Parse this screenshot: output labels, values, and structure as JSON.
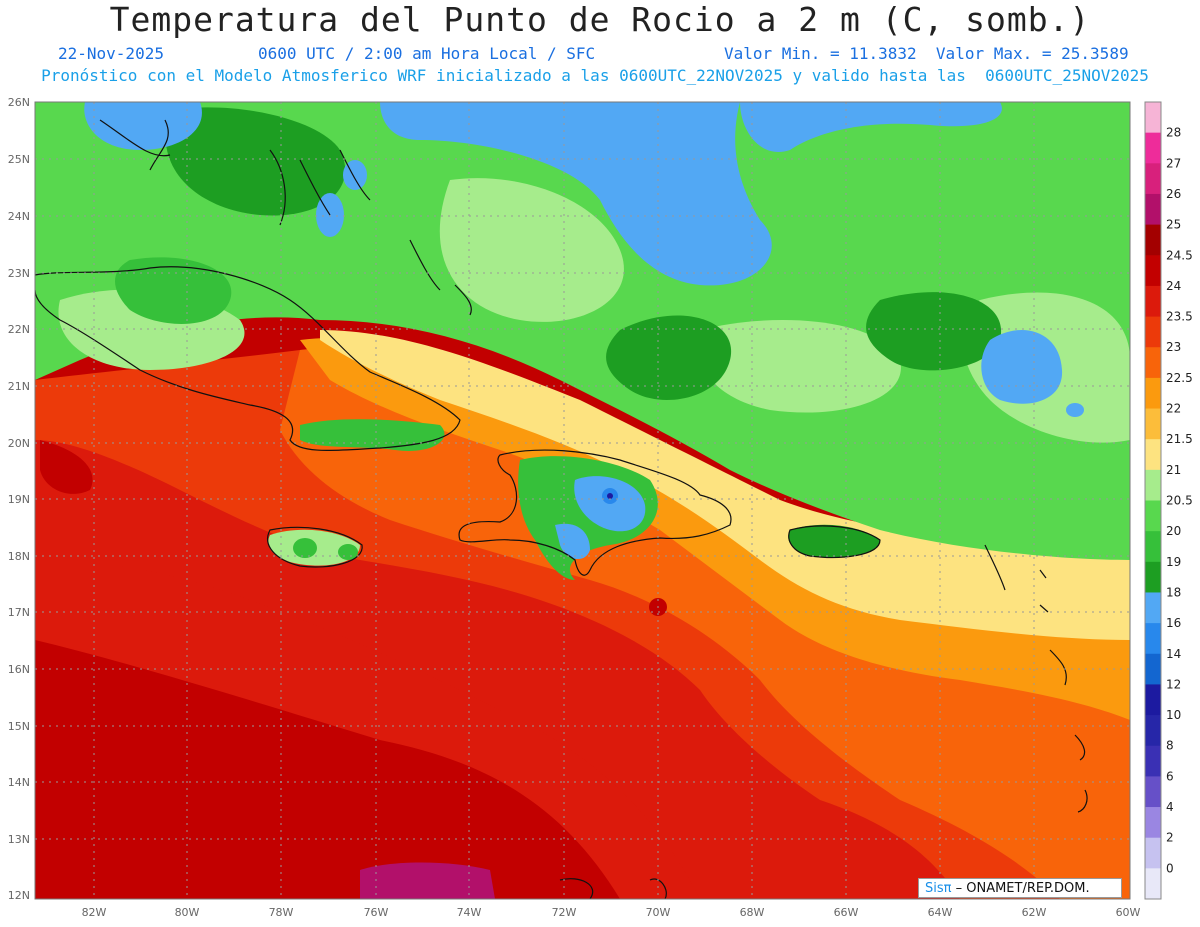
{
  "title": "Temperatura del Punto de Rocio a 2 m (C, somb.)",
  "date": "22-Nov-2025",
  "time": "0600 UTC / 2:00 am Hora Local / SFC",
  "minmax": "Valor Min. = 11.3832  Valor Max. = 25.3589",
  "model_line": "Pronóstico con el Modelo Atmosferico WRF inicializado a las 0600UTC_22NOV2025 y valido hasta las  0600UTC_25NOV2025",
  "credit": {
    "brand": "Sisπ",
    "text": "– ONAMET/REP.DOM."
  },
  "axes": {
    "lon_labels": [
      "82W",
      "80W",
      "78W",
      "76W",
      "74W",
      "72W",
      "70W",
      "68W",
      "66W",
      "64W",
      "62W",
      "60W"
    ],
    "lat_labels": [
      "26N",
      "25N",
      "24N",
      "23N",
      "22N",
      "21N",
      "20N",
      "19N",
      "18N",
      "17N",
      "16N",
      "15N",
      "14N",
      "13N",
      "12N"
    ]
  },
  "colorbar": {
    "labels": [
      "28",
      "27",
      "26",
      "25",
      "24.5",
      "24",
      "23.5",
      "23",
      "22.5",
      "22",
      "21.5",
      "21",
      "20.5",
      "20",
      "19",
      "18",
      "16",
      "14",
      "12",
      "10",
      "8",
      "6",
      "4",
      "2",
      "0"
    ],
    "colors": [
      "#f6b4d6",
      "#ee2c9a",
      "#d8207c",
      "#b2106a",
      "#a30000",
      "#c20000",
      "#dc1a0c",
      "#ec3a0a",
      "#f8640a",
      "#fb9a0e",
      "#fcbd3a",
      "#fde380",
      "#a6ec8c",
      "#58d84e",
      "#36c03a",
      "#1d9e22",
      "#52a8f4",
      "#2888ec",
      "#1366d0",
      "#1c1aa0",
      "#2626a8",
      "#3a30b4",
      "#6650c8",
      "#9a86e2",
      "#c6c2f0",
      "#e8e8f8"
    ]
  }
}
